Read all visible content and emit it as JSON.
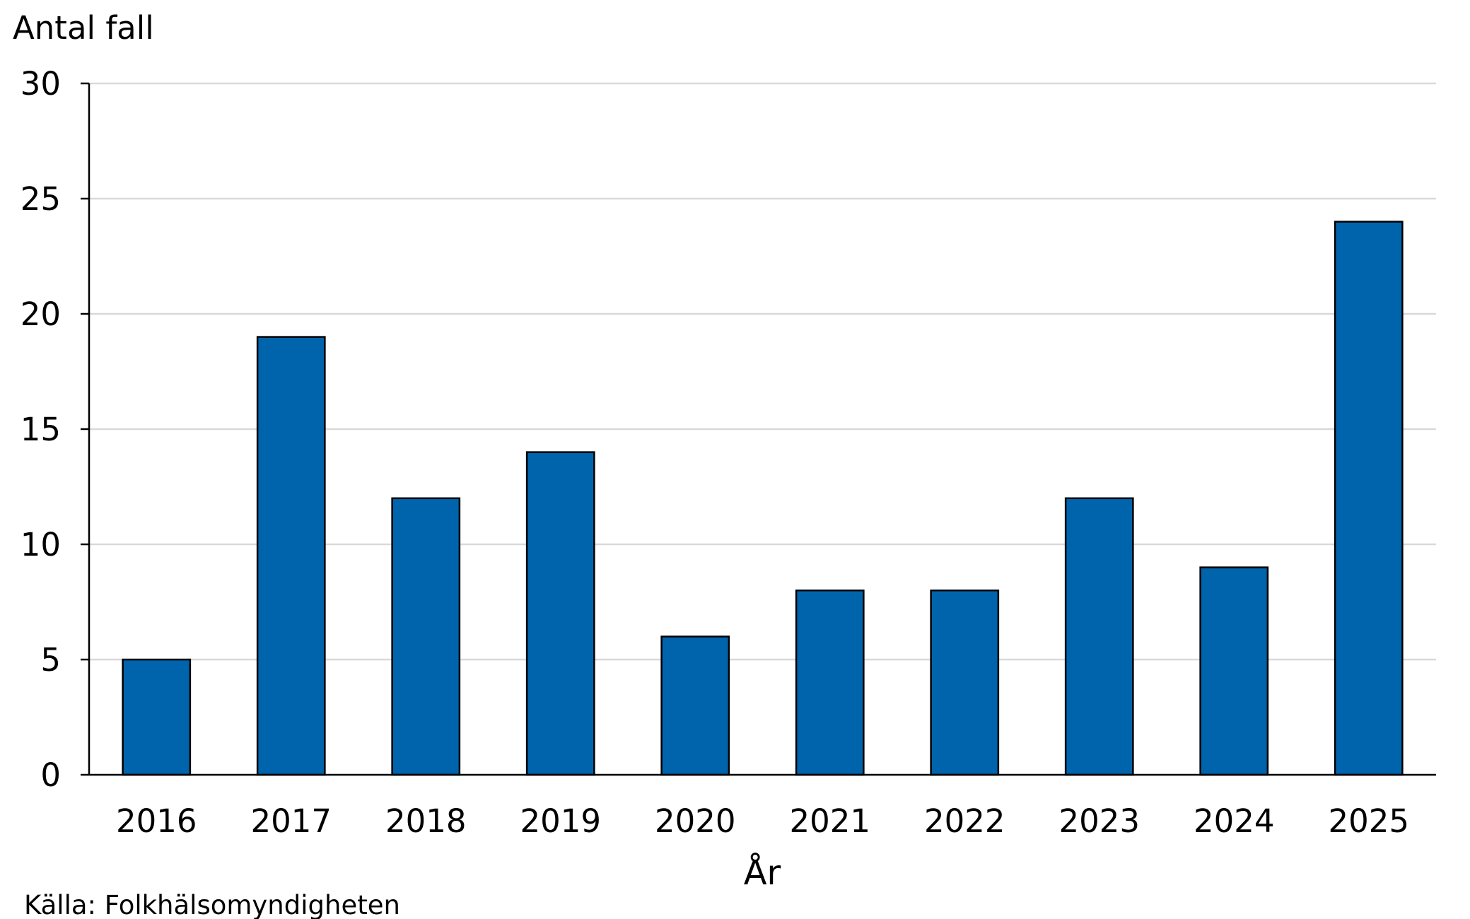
{
  "chart_data": {
    "type": "bar",
    "title": "",
    "ylabel": "Antal fall",
    "xlabel": "År",
    "categories": [
      "2016",
      "2017",
      "2018",
      "2019",
      "2020",
      "2021",
      "2022",
      "2023",
      "2024",
      "2025"
    ],
    "values": [
      5,
      19,
      12,
      14,
      6,
      8,
      8,
      12,
      9,
      24
    ],
    "ylim": [
      0,
      30
    ],
    "yticks": [
      "0",
      "5",
      "10",
      "15",
      "20",
      "25",
      "30"
    ],
    "grid": true,
    "bar_color": "#0064ad",
    "source": "Källa: Folkhälsomyndigheten"
  }
}
